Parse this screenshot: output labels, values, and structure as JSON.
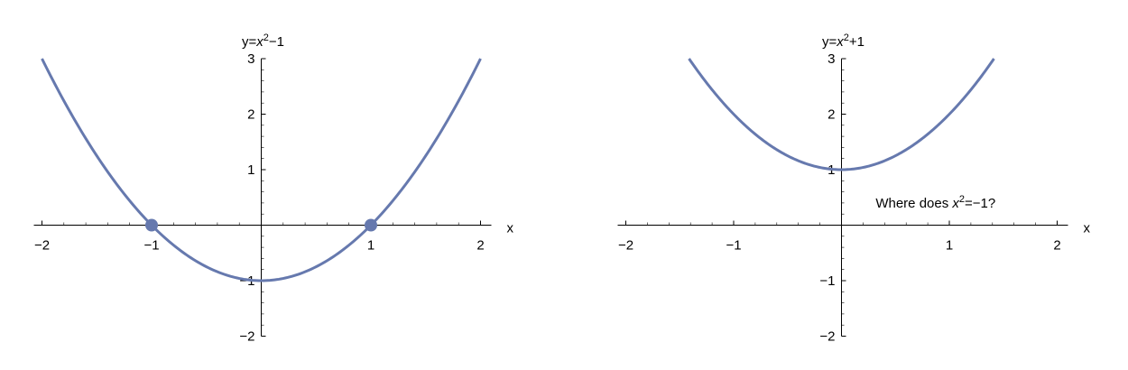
{
  "chart_data": [
    {
      "type": "line",
      "title_prefix": "y=",
      "title_var": "x",
      "title_exp": "2",
      "title_suffix": "−1",
      "xlabel": "x",
      "ylabel": "",
      "xlim": [
        -2,
        2
      ],
      "ylim": [
        -2,
        3
      ],
      "x_ticks": [
        -2,
        -1,
        1,
        2
      ],
      "x_tick_labels": [
        "−2",
        "−1",
        "1",
        "2"
      ],
      "y_ticks": [
        -2,
        -1,
        1,
        2,
        3
      ],
      "y_tick_labels": [
        "−2",
        "−1",
        "1",
        "2",
        "3"
      ],
      "series": [
        {
          "function": "x^2-1",
          "domain": [
            -2,
            2
          ],
          "color": "#6679ae"
        }
      ],
      "points": [
        {
          "x": -1,
          "y": 0
        },
        {
          "x": 1,
          "y": 0
        }
      ],
      "annotation": null
    },
    {
      "type": "line",
      "title_prefix": "y=",
      "title_var": "x",
      "title_exp": "2",
      "title_suffix": "+1",
      "xlabel": "x",
      "ylabel": "",
      "xlim": [
        -2,
        2
      ],
      "ylim": [
        -2,
        3
      ],
      "x_ticks": [
        -2,
        -1,
        1,
        2
      ],
      "x_tick_labels": [
        "−2",
        "−1",
        "1",
        "2"
      ],
      "y_ticks": [
        -2,
        -1,
        1,
        2,
        3
      ],
      "y_tick_labels": [
        "−2",
        "−1",
        "1",
        "2",
        "3"
      ],
      "series": [
        {
          "function": "x^2+1",
          "domain": [
            -1.414,
            1.414
          ],
          "color": "#6679ae"
        }
      ],
      "points": [],
      "annotation": {
        "prefix": "Where does ",
        "var": "x",
        "exp": "2",
        "suffix": "=−1?",
        "x": 0.3,
        "y": 0.4
      }
    }
  ]
}
